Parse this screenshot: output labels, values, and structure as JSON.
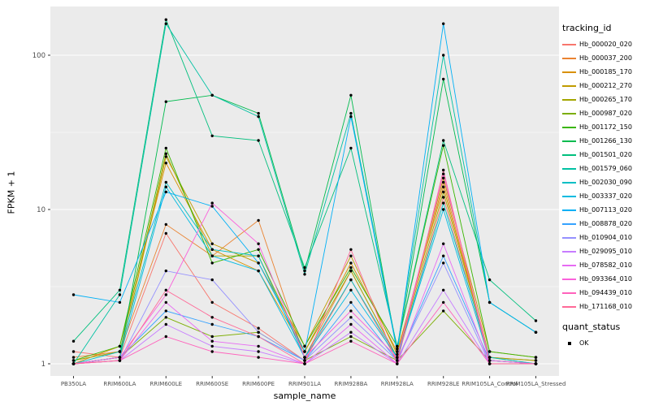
{
  "figure": {
    "background": "#FFFFFF",
    "panel_background": "#EBEBEB",
    "grid_major_color": "#FFFFFF",
    "grid_minor_color": "#F5F5F5",
    "point_color": "#000000",
    "tick_text_color": "#4D4D4D",
    "tick_mark_color": "#333333"
  },
  "axes": {
    "y_title": "FPKM + 1",
    "x_title": "sample_name",
    "y_tick_labels": [
      "1",
      "10",
      "100"
    ]
  },
  "legend": {
    "tracking_title": "tracking_id",
    "quant_title": "quant_status",
    "quant_items": [
      {
        "label": "OK"
      }
    ]
  },
  "chart_data": {
    "type": "line",
    "title": "",
    "xlabel": "sample_name",
    "ylabel": "FPKM + 1",
    "y_scale": "log10",
    "y_tick_values": [
      1,
      10,
      100
    ],
    "ylim": [
      0.9,
      220
    ],
    "grid": true,
    "legend_position": "right",
    "x_categories": [
      "PB350LA",
      "RRIM600LA",
      "RRIM600LE",
      "RRIM600SE",
      "RRIM600PE",
      "RRIM901LA",
      "RRIM928BA",
      "RRIM928LA",
      "RRIM928LE",
      "RRIM105LA_Control",
      "RRIM105LA_Stressed"
    ],
    "series": [
      {
        "name": "Hb_000020_020",
        "color": "#F8766D",
        "values": [
          1.2,
          1.1,
          7,
          2.5,
          1.7,
          1.05,
          3.5,
          1.05,
          12,
          1.05,
          1.0
        ]
      },
      {
        "name": "Hb_000037_200",
        "color": "#EA8331",
        "values": [
          1.1,
          1.2,
          8,
          5,
          8.5,
          1.1,
          4,
          1.1,
          15,
          1.1,
          1.0
        ]
      },
      {
        "name": "Hb_000185_170",
        "color": "#D89000",
        "values": [
          1.0,
          1.3,
          20,
          5.5,
          4,
          1.2,
          4.5,
          1.2,
          14,
          1.1,
          1.05
        ]
      },
      {
        "name": "Hb_000212_270",
        "color": "#C09B00",
        "values": [
          1.0,
          1.1,
          22,
          6,
          4.5,
          1.3,
          5,
          1.15,
          16,
          1.2,
          1.1
        ]
      },
      {
        "name": "Hb_000265_170",
        "color": "#A3A500",
        "values": [
          1.05,
          1.2,
          23,
          5,
          5,
          1.2,
          4,
          1.1,
          13,
          1.1,
          1.05
        ]
      },
      {
        "name": "Hb_000987_020",
        "color": "#7CAE00",
        "values": [
          1.0,
          1.1,
          2.0,
          1.5,
          1.6,
          1.05,
          1.5,
          1.05,
          2.2,
          1.05,
          1.0
        ]
      },
      {
        "name": "Hb_001172_150",
        "color": "#39B600",
        "values": [
          1.05,
          1.3,
          25,
          4.5,
          5.5,
          1.3,
          4.2,
          1.3,
          26,
          1.2,
          1.1
        ]
      },
      {
        "name": "Hb_001266_130",
        "color": "#00BB4E",
        "values": [
          1.0,
          1.1,
          50,
          55,
          42,
          4.0,
          55,
          1.2,
          70,
          2.5,
          1.6
        ]
      },
      {
        "name": "Hb_001501_020",
        "color": "#00BF7D",
        "values": [
          1.4,
          3,
          170,
          30,
          28,
          4.2,
          25,
          1.3,
          28,
          3.5,
          1.9
        ]
      },
      {
        "name": "Hb_001579_060",
        "color": "#00C1A3",
        "values": [
          1.0,
          2.8,
          160,
          55,
          40,
          3.8,
          42,
          1.25,
          100,
          2.5,
          1.6
        ]
      },
      {
        "name": "Hb_002030_090",
        "color": "#00BFC4",
        "values": [
          1.0,
          1.2,
          15,
          5.5,
          5,
          1.1,
          3.5,
          1.1,
          11,
          1.1,
          1.0
        ]
      },
      {
        "name": "Hb_003337_020",
        "color": "#00BAE0",
        "values": [
          1.0,
          1.1,
          14,
          5,
          4,
          1.1,
          3,
          1.1,
          10,
          1.05,
          1.0
        ]
      },
      {
        "name": "Hb_007113_020",
        "color": "#00B0F6",
        "values": [
          2.8,
          2.5,
          13,
          10.5,
          4.5,
          1.2,
          40,
          1.2,
          160,
          2.5,
          1.6
        ]
      },
      {
        "name": "Hb_008878_020",
        "color": "#35A2FF",
        "values": [
          1.0,
          1.1,
          2.2,
          1.8,
          1.5,
          1.05,
          2.5,
          1.05,
          5,
          1.05,
          1.0
        ]
      },
      {
        "name": "Hb_010904_010",
        "color": "#9590FF",
        "values": [
          1.0,
          1.05,
          4,
          3.5,
          1.6,
          1.05,
          2,
          1.05,
          4.5,
          1.0,
          1.0
        ]
      },
      {
        "name": "Hb_029095_010",
        "color": "#C77CFF",
        "values": [
          1.0,
          1.05,
          1.8,
          1.3,
          1.2,
          1.0,
          1.6,
          1.0,
          3,
          1.0,
          1.0
        ]
      },
      {
        "name": "Hb_078582_010",
        "color": "#E76BF3",
        "values": [
          1.0,
          1.05,
          2.5,
          1.4,
          1.3,
          1.0,
          1.8,
          1.0,
          6,
          1.0,
          1.0
        ]
      },
      {
        "name": "Hb_093364_010",
        "color": "#FA62DB",
        "values": [
          1.0,
          1.1,
          2.8,
          11,
          6,
          1.1,
          2.2,
          1.1,
          17,
          1.05,
          1.0
        ]
      },
      {
        "name": "Hb_094439_010",
        "color": "#FF62BC",
        "values": [
          1.0,
          1.05,
          1.5,
          1.2,
          1.1,
          1.0,
          1.4,
          1.0,
          2.5,
          1.0,
          1.0
        ]
      },
      {
        "name": "Hb_171168_010",
        "color": "#FF6A98",
        "values": [
          1.0,
          1.05,
          3,
          2,
          1.5,
          1.0,
          5.5,
          1.0,
          18,
          1.0,
          1.0
        ]
      }
    ]
  }
}
